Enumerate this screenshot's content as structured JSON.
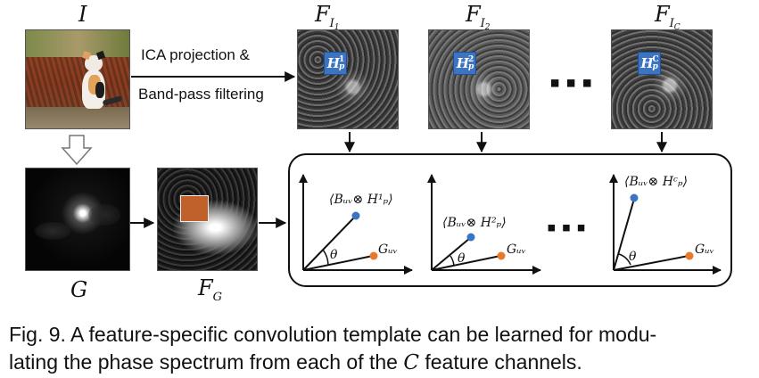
{
  "labels": {
    "input": "I",
    "fi1_main": "F",
    "fi1_sub": "I",
    "fi1_subsub": "1",
    "fi2_main": "F",
    "fi2_sub": "I",
    "fi2_subsub": "2",
    "fic_main": "F",
    "fic_sub": "I",
    "fic_subsub": "C",
    "g": "G",
    "fg_main": "F",
    "fg_sub": "G"
  },
  "flow": {
    "line1": "ICA projection &",
    "line2": "Band-pass filtering",
    "ellipsis": "▪▪▪"
  },
  "badges": {
    "h1": "H",
    "h1_sup": "1",
    "h1_sub": "p",
    "h2": "H",
    "h2_sup": "2",
    "h2_sub": "p",
    "hc": "H",
    "hc_sup": "C",
    "hc_sub": "p"
  },
  "vectors": {
    "v1": "⟨Bᵤᵥ⊗ H¹ₚ⟩",
    "v2": "⟨Bᵤᵥ⊗ H²ₚ⟩",
    "vc": "⟨Bᵤᵥ⊗ Hᶜₚ⟩",
    "guv": "Gᵤᵥ",
    "theta": "θ"
  },
  "colors": {
    "blue_point": "#3d74c2",
    "orange_point": "#e8782a",
    "badge_blue": "#3d74c2",
    "patch_orange": "#c0602a"
  },
  "caption": {
    "line1": "Fig. 9. A feature-specific convolution template can be learned for modu-",
    "line2_pre": "lating the phase spectrum from each of the ",
    "line2_math": "C",
    "line2_post": " feature channels."
  }
}
